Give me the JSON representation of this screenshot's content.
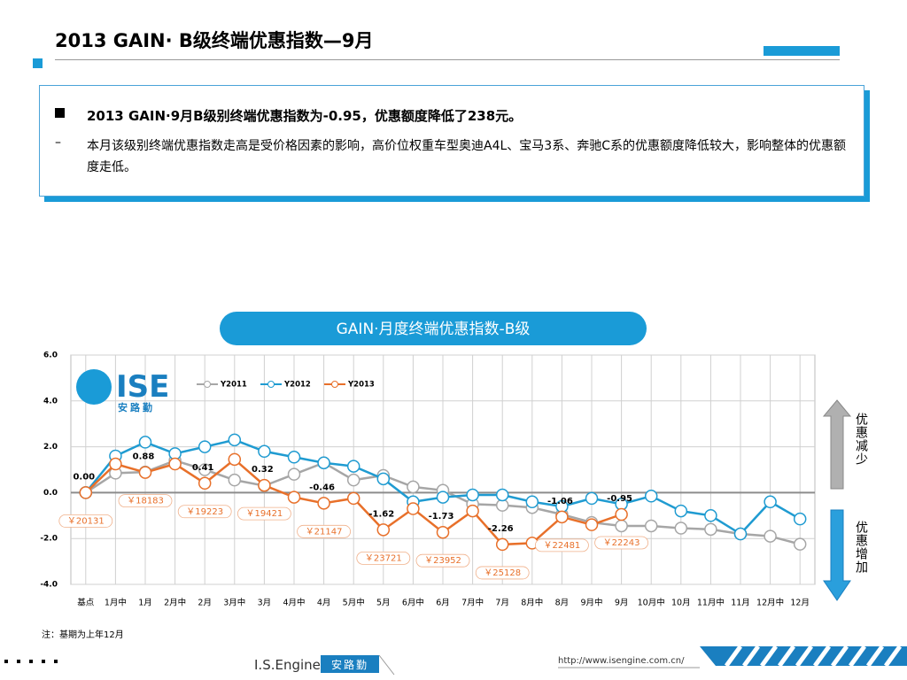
{
  "header": {
    "title": "2013 GAIN· B级终端优惠指数—9月"
  },
  "summary": {
    "bullet": "2013 GAIN·9月B级别终端优惠指数为-0.95，优惠额度降低了238元。",
    "detail": "本月该级别终端优惠指数走高是受价格因素的影响，高价位权重车型奥迪A4L、宝马3系、奔驰C系的优惠额度降低较大，影响整体的优惠额度走低。"
  },
  "chart_data": {
    "type": "line",
    "title": "GAIN·月度终端优惠指数-B级",
    "categories": [
      "基点",
      "1月中",
      "1月",
      "2月中",
      "2月",
      "3月中",
      "3月",
      "4月中",
      "4月",
      "5月中",
      "5月",
      "6月中",
      "6月",
      "7月中",
      "7月",
      "8月中",
      "8月",
      "9月中",
      "9月",
      "10月中",
      "10月",
      "11月中",
      "11月",
      "12月中",
      "12月"
    ],
    "series": [
      {
        "name": "Y2011",
        "color": "#a6a6a6",
        "values": [
          0,
          0.85,
          0.9,
          1.4,
          1.0,
          0.55,
          0.3,
          0.8,
          1.3,
          0.55,
          0.75,
          0.25,
          0.1,
          -0.5,
          -0.55,
          -0.65,
          -0.95,
          -1.3,
          -1.45,
          -1.45,
          -1.55,
          -1.6,
          -1.8,
          -1.9,
          -2.25
        ]
      },
      {
        "name": "Y2012",
        "color": "#1f9bd1",
        "values": [
          0,
          1.6,
          2.2,
          1.7,
          2.0,
          2.3,
          1.8,
          1.55,
          1.3,
          1.15,
          0.6,
          -0.4,
          -0.2,
          -0.1,
          -0.1,
          -0.4,
          -0.6,
          -0.25,
          -0.5,
          -0.15,
          -0.8,
          -1.0,
          -1.8,
          -0.4,
          -1.15
        ]
      },
      {
        "name": "Y2013",
        "color": "#e8702a",
        "values": [
          0,
          1.25,
          0.88,
          1.25,
          0.41,
          1.45,
          0.32,
          -0.2,
          -0.46,
          -0.25,
          -1.62,
          -0.7,
          -1.73,
          -0.8,
          -2.26,
          -2.2,
          -1.06,
          -1.4,
          -0.95,
          null,
          null,
          null,
          null,
          null,
          null
        ],
        "value_labels": [
          "0.00",
          null,
          "0.88",
          null,
          "0.41",
          null,
          "0.32",
          null,
          "-0.46",
          null,
          "-1.62",
          null,
          "-1.73",
          null,
          "-2.26",
          null,
          "-1.06",
          null,
          "-0.95",
          null,
          null,
          null,
          null,
          null,
          null
        ],
        "price_labels": [
          "￥20131",
          null,
          "￥18183",
          null,
          "￥19223",
          null,
          "￥19421",
          null,
          "￥21147",
          null,
          "￥23721",
          null,
          "￥23952",
          null,
          "￥25128",
          null,
          "￥22481",
          null,
          "￥22243",
          null,
          null,
          null,
          null,
          null,
          null
        ]
      }
    ],
    "ylim": [
      -4,
      6
    ],
    "yticks": [
      {
        "value": -4,
        "label": "-4.0"
      },
      {
        "value": -2,
        "label": "-2.0"
      },
      {
        "value": 0,
        "label": "0.0"
      },
      {
        "value": 2,
        "label": "2.0"
      },
      {
        "value": 4,
        "label": "4.0"
      },
      {
        "value": 6,
        "label": "6.0"
      }
    ],
    "grid": true,
    "legend": "top",
    "up_label": "优惠减少",
    "down_label": "优惠增加",
    "note": "注：基期为上年12月"
  },
  "logo": {
    "mark": "ISE",
    "name": "安路勤"
  },
  "footer": {
    "brand": "I.S.Engine",
    "brand_cn": "安路勤",
    "url": "http://www.isengine.com.cn/"
  }
}
